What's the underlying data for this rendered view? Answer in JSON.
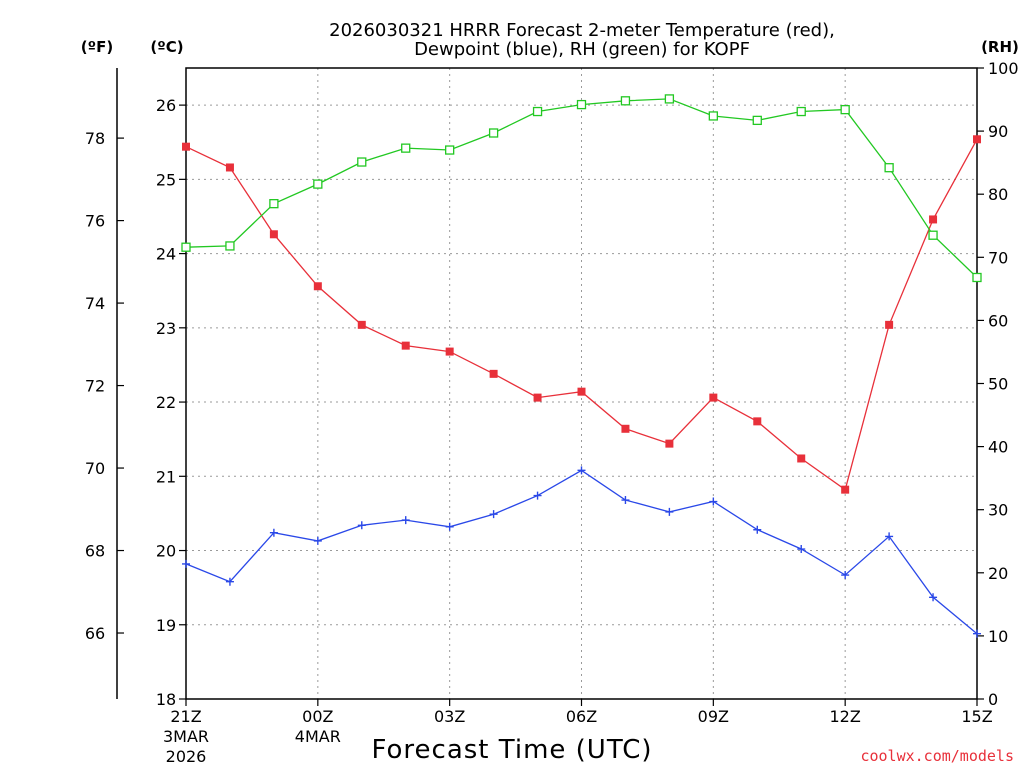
{
  "chart_data": {
    "type": "line",
    "title_line1": "2026030321 HRRR Forecast 2-meter Temperature (red),",
    "title_line2": "Dewpoint (blue), RH (green) for KOPF",
    "xlabel": "Forecast Time (UTC)",
    "x_hours": [
      0,
      1,
      2,
      3,
      4,
      5,
      6,
      7,
      8,
      9,
      10,
      11,
      12,
      13,
      14,
      15,
      16,
      17,
      18
    ],
    "xticks": [
      {
        "hour": 0,
        "label": "21Z",
        "sub1": "3MAR",
        "sub2": "2026"
      },
      {
        "hour": 3,
        "label": "00Z",
        "sub1": "4MAR",
        "sub2": ""
      },
      {
        "hour": 6,
        "label": "03Z",
        "sub1": "",
        "sub2": ""
      },
      {
        "hour": 9,
        "label": "06Z",
        "sub1": "",
        "sub2": ""
      },
      {
        "hour": 12,
        "label": "09Z",
        "sub1": "",
        "sub2": ""
      },
      {
        "hour": 15,
        "label": "12Z",
        "sub1": "",
        "sub2": ""
      },
      {
        "hour": 18,
        "label": "15Z",
        "sub1": "",
        "sub2": ""
      }
    ],
    "left_axis_c": {
      "unit": "(ºC)",
      "min": 18,
      "max": 26.5,
      "ticks": [
        18,
        19,
        20,
        21,
        22,
        23,
        24,
        25,
        26
      ]
    },
    "left_axis_f": {
      "unit": "(ºF)",
      "ticks": [
        66,
        68,
        70,
        72,
        74,
        76,
        78
      ]
    },
    "right_axis_rh": {
      "unit": "(RH)",
      "min": 0,
      "max": 100,
      "ticks": [
        0,
        10,
        20,
        30,
        40,
        50,
        60,
        70,
        80,
        90,
        100
      ]
    },
    "series": [
      {
        "name": "Temperature",
        "axis": "C",
        "color": "#e8303a",
        "marker": "filled-square",
        "values": [
          25.44,
          25.16,
          24.26,
          23.56,
          23.04,
          22.76,
          22.68,
          22.38,
          22.06,
          22.14,
          21.64,
          21.44,
          22.06,
          21.74,
          21.24,
          20.82,
          23.04,
          24.46,
          25.54
        ]
      },
      {
        "name": "Dewpoint",
        "axis": "C",
        "color": "#2a48e8",
        "marker": "plus",
        "values": [
          19.82,
          19.58,
          20.24,
          20.13,
          20.34,
          20.41,
          20.32,
          20.49,
          20.74,
          21.08,
          20.68,
          20.52,
          20.66,
          20.28,
          20.02,
          19.67,
          20.19,
          19.37,
          18.88
        ]
      },
      {
        "name": "RH",
        "axis": "RH",
        "color": "#22c822",
        "marker": "open-square",
        "values": [
          71.6,
          71.8,
          78.5,
          81.6,
          85.1,
          87.3,
          87.0,
          89.7,
          93.1,
          94.2,
          94.8,
          95.1,
          92.4,
          91.7,
          93.1,
          93.4,
          84.2,
          73.5,
          66.8
        ]
      }
    ],
    "credit": "coolwx.com/models"
  },
  "colors": {
    "credit": "#e8303a"
  }
}
